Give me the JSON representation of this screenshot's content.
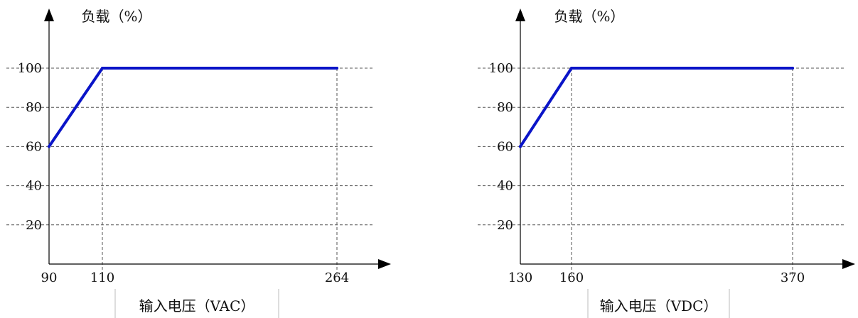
{
  "chart_data": [
    {
      "type": "line",
      "ylabel": "负载（%）",
      "xlabel": "输入电压（VAC）",
      "x_ticks": [
        90,
        110,
        264
      ],
      "y_ticks": [
        20,
        40,
        60,
        80,
        100
      ],
      "grid": true,
      "series": [
        {
          "x": [
            90,
            110,
            264
          ],
          "values": [
            60,
            100,
            100
          ]
        }
      ],
      "colors": {
        "line": "#0a14c8",
        "axis": "#000000",
        "grid": "#555555"
      }
    },
    {
      "type": "line",
      "ylabel": "负载（%）",
      "xlabel": "输入电压（VDC）",
      "x_ticks": [
        130,
        160,
        370
      ],
      "y_ticks": [
        20,
        40,
        60,
        80,
        100
      ],
      "grid": true,
      "series": [
        {
          "x": [
            130,
            160,
            370
          ],
          "values": [
            60,
            100,
            100
          ]
        }
      ],
      "colors": {
        "line": "#0a14c8",
        "axis": "#000000",
        "grid": "#555555"
      }
    }
  ]
}
